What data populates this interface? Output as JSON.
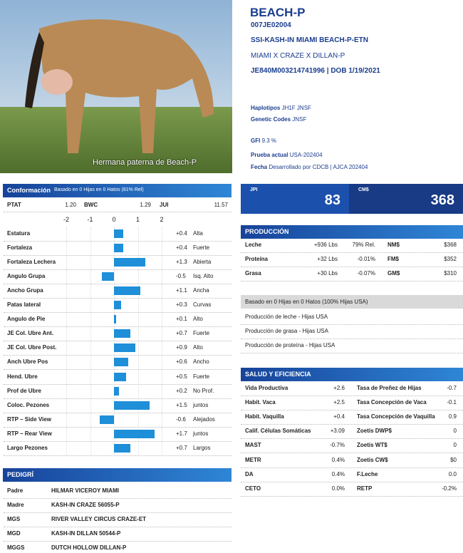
{
  "photo": {
    "caption": "Hermana paterna de Beach-P"
  },
  "header": {
    "name": "BEACH-P",
    "code": "007JE02004",
    "registered_name": "SSI-KASH-IN MIAMI BEACH-P-ETN",
    "pedigree_line": "MIAMI X CRAZE X DILLAN-P",
    "id_dob": "JE840M003214741996 | DOB 1/19/2021"
  },
  "info": [
    {
      "label": "Haplotipos",
      "value": "JH1F JNSF"
    },
    {
      "label": "Genetic Codes",
      "value": "JNSF"
    },
    {
      "label": "GFI",
      "value": "9.3 %"
    },
    {
      "label": "Prueba actual",
      "value": "USA-202404"
    },
    {
      "label": "Fecha",
      "value": "Desarrollado por CDCB | AJCA 202404"
    }
  ],
  "conformation": {
    "title": "Conformación",
    "note": "Basado en 0 Hijas en 0 Hatos (81% Rel)",
    "summary": [
      {
        "label": "PTAT",
        "value": "1.20"
      },
      {
        "label": "BWC",
        "value": "1.29"
      },
      {
        "label": "JUI",
        "value": "11.57"
      }
    ],
    "xticks": [
      -2,
      -1,
      0,
      1,
      2
    ],
    "names": [
      "Estatura",
      "Fortaleza",
      "Fortaleza Lechera",
      "Angulo Grupa",
      "Ancho Grupa",
      "Patas lateral",
      "Angulo de Pie",
      "JE Col. Ubre Ant.",
      "JE Col. Ubre Post.",
      "Anch Ubre Pos",
      "Hend. Ubre",
      "Prof de Ubre",
      "Coloc. Pezones",
      "RTP – Side View",
      "RTP – Rear View",
      "Largo Pezones"
    ],
    "values": [
      0.4,
      0.4,
      1.3,
      -0.5,
      1.1,
      0.3,
      0.1,
      0.7,
      0.9,
      0.6,
      0.5,
      0.2,
      1.5,
      -0.6,
      1.7,
      0.7
    ],
    "value_labels": [
      "+0.4",
      "+0.4",
      "+1.3",
      "-0.5",
      "+1.1",
      "+0.3",
      "+0.1",
      "+0.7",
      "+0.9",
      "+0.6",
      "+0.5",
      "+0.2",
      "+1.5",
      "-0.6",
      "+1.7",
      "+0.7"
    ],
    "descriptions": [
      "Alta",
      "Fuerte",
      "Abierta",
      "Isq. Alto",
      "Ancha",
      "Curvas",
      "Alto",
      "Fuerte",
      "Alto",
      "Ancho",
      "Fuerte",
      "No Prof.",
      "juntos",
      "Alejados",
      "juntos",
      "Largos"
    ],
    "color": "#1e8fd8"
  },
  "indexes": [
    {
      "label": "JPI",
      "value": "83"
    },
    {
      "label": "CM$",
      "value": "368"
    }
  ],
  "production": {
    "title": "PRODUCCIÓN",
    "rows": [
      [
        "Leche",
        "+936 Lbs",
        "79% Rel.",
        "NM$",
        "$368"
      ],
      [
        "Proteína",
        "+32 Lbs",
        "-0.01%",
        "FM$",
        "$352"
      ],
      [
        "Grasa",
        "+30 Lbs",
        "-0.07%",
        "GM$",
        "$310"
      ]
    ]
  },
  "daughters": {
    "note": "Basado en 0 Hijas en 0 Hatos (100% Hijas USA)",
    "rows": [
      "Producción de leche - Hijas USA",
      "Producción de grasa - Hijas USA",
      "Producción de proteína - Hijas USA"
    ]
  },
  "health": {
    "title": "SALUD Y EFICIENCIA",
    "rows": [
      [
        "Vida Productiva",
        "+2.6",
        "Tasa de Preñez de Hijas",
        "-0.7"
      ],
      [
        "Habit. Vaca",
        "+2.5",
        "Tasa Concepción de Vaca",
        "-0.1"
      ],
      [
        "Habit. Vaquilla",
        "+0.4",
        "Tasa Concepción de Vaquilla",
        "0.9"
      ],
      [
        "Calif. Células Somáticas",
        "+3.09",
        "Zoetis DWP$",
        "0"
      ],
      [
        "MAST",
        "-0.7%",
        "Zoetis WT$",
        "0"
      ],
      [
        "METR",
        "0.4%",
        "Zoetis CW$",
        "$0"
      ],
      [
        "DA",
        "0.4%",
        "F.Leche",
        "0.0"
      ],
      [
        "CETO",
        "0.0%",
        "RETP",
        "-0.2%"
      ]
    ]
  },
  "pedigree": {
    "title": "PEDIGRÍ",
    "rows": [
      [
        "Padre",
        "HILMAR VICEROY MIAMI"
      ],
      [
        "Madre",
        "KASH-IN CRAZE 56055-P"
      ],
      [
        "MGS",
        "RIVER VALLEY CIRCUS CRAZE-ET"
      ],
      [
        "MGD",
        "KASH-IN DILLAN 50544-P"
      ],
      [
        "MGGS",
        "DUTCH HOLLOW DILLAN-P"
      ]
    ]
  }
}
